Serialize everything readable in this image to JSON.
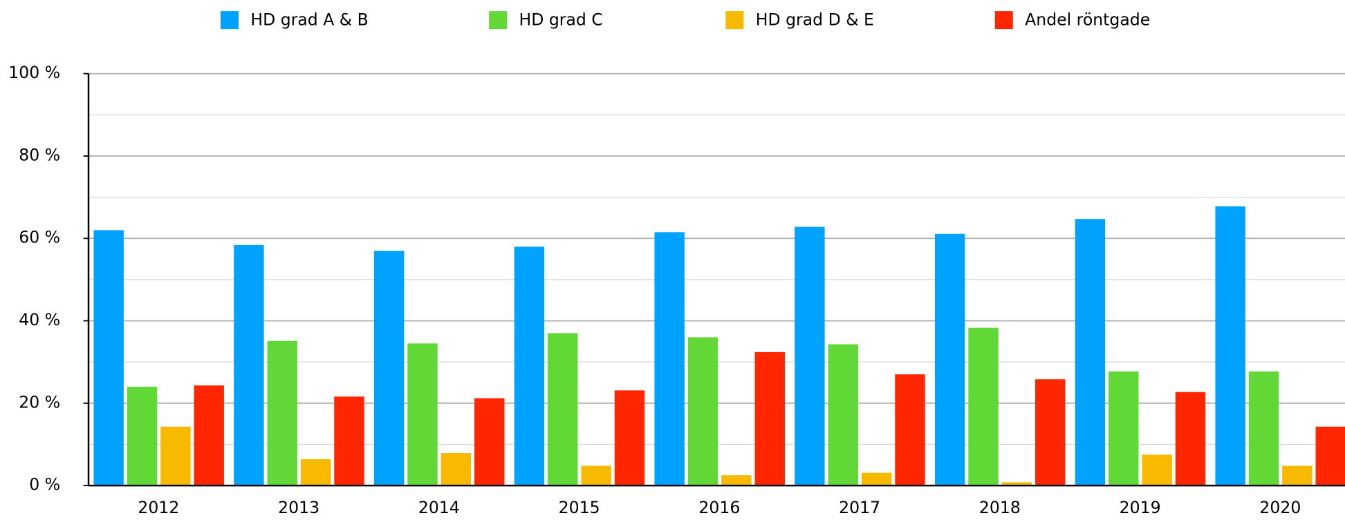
{
  "chart_data": {
    "type": "bar",
    "categories": [
      "2012",
      "2013",
      "2014",
      "2015",
      "2016",
      "2017",
      "2018",
      "2019",
      "2020"
    ],
    "series": [
      {
        "name": "HD grad A & B",
        "color": "#00a2ff",
        "values": [
          62,
          58.4,
          57,
          58,
          61.5,
          62.8,
          61.1,
          64.7,
          67.8
        ]
      },
      {
        "name": "HD grad C",
        "color": "#61d836",
        "values": [
          24,
          35.1,
          34.5,
          37,
          36,
          34.3,
          38.3,
          27.7,
          27.7
        ]
      },
      {
        "name": "HD grad D & E",
        "color": "#f8ba00",
        "values": [
          14.3,
          6.4,
          7.9,
          4.8,
          2.5,
          3.1,
          0.8,
          7.5,
          4.8
        ]
      },
      {
        "name": "Andel röntgade",
        "color": "#ff2600",
        "values": [
          24.3,
          21.6,
          21.2,
          23.1,
          32.4,
          27,
          25.8,
          22.7,
          14.3
        ]
      }
    ],
    "ylim": [
      0,
      100
    ],
    "yticks": [
      {
        "value": 0,
        "label": "0 %"
      },
      {
        "value": 20,
        "label": "20 %"
      },
      {
        "value": 40,
        "label": "40 %"
      },
      {
        "value": 60,
        "label": "60 %"
      },
      {
        "value": 80,
        "label": "80 %"
      },
      {
        "value": 100,
        "label": "100 %"
      }
    ],
    "minor_yticks": [
      10,
      30,
      50,
      70,
      90
    ],
    "grid": true,
    "legend": "top"
  }
}
